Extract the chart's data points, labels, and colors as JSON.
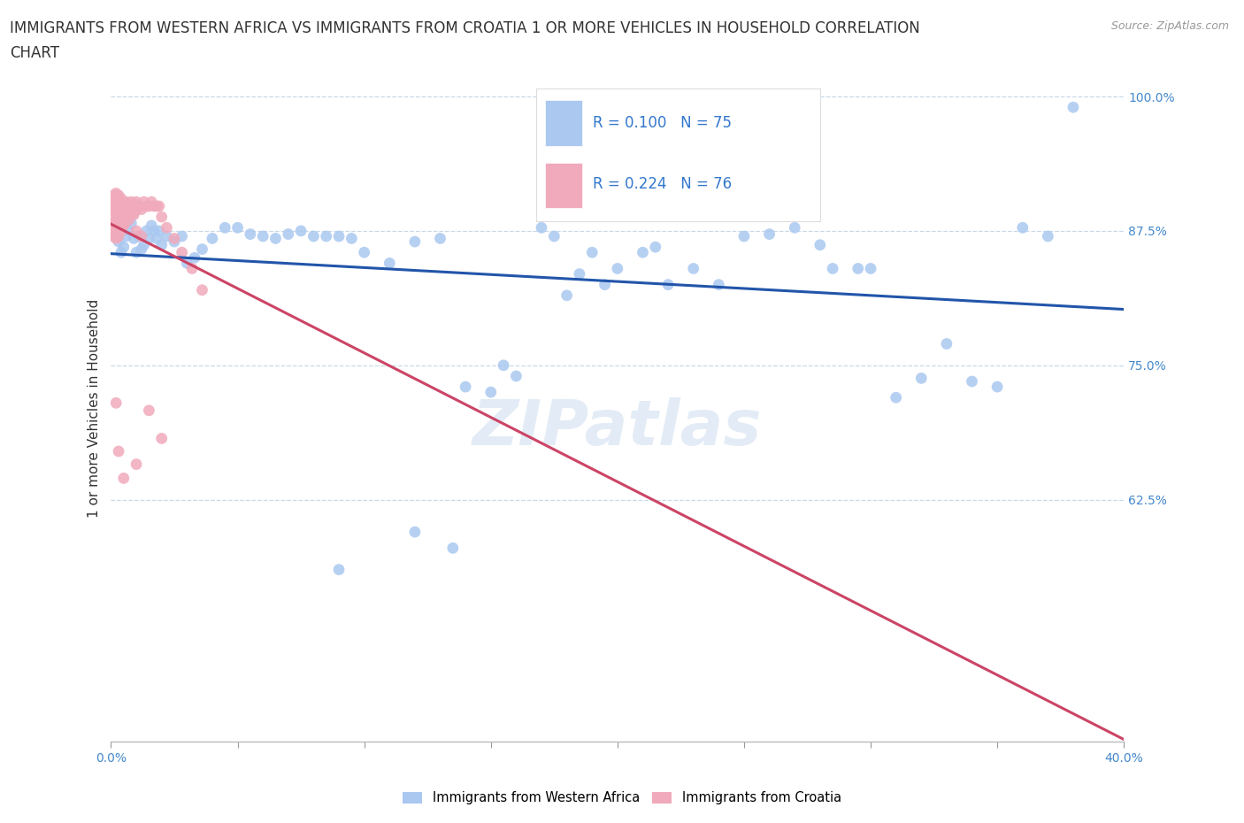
{
  "title_line1": "IMMIGRANTS FROM WESTERN AFRICA VS IMMIGRANTS FROM CROATIA 1 OR MORE VEHICLES IN HOUSEHOLD CORRELATION",
  "title_line2": "CHART",
  "source": "Source: ZipAtlas.com",
  "ylabel": "1 or more Vehicles in Household",
  "xlim": [
    0.0,
    0.4
  ],
  "ylim": [
    0.4,
    1.02
  ],
  "xtick_positions": [
    0.0,
    0.05,
    0.1,
    0.15,
    0.2,
    0.25,
    0.3,
    0.35,
    0.4
  ],
  "xticklabels": [
    "0.0%",
    "",
    "",
    "",
    "",
    "",
    "",
    "",
    "40.0%"
  ],
  "ytick_positions": [
    0.625,
    0.75,
    0.875,
    1.0
  ],
  "ytick_labels": [
    "62.5%",
    "75.0%",
    "87.5%",
    "100.0%"
  ],
  "blue_color": "#aac8f0",
  "pink_color": "#f0aabb",
  "blue_line_color": "#2255aa",
  "pink_line_color": "#cc4466",
  "r_blue": 0.1,
  "n_blue": 75,
  "r_pink": 0.224,
  "n_pink": 76,
  "legend_label_blue": "Immigrants from Western Africa",
  "legend_label_pink": "Immigrants from Croatia",
  "watermark": "ZIPatlas",
  "title_fontsize": 12,
  "source_fontsize": 9,
  "tick_fontsize": 10,
  "ylabel_fontsize": 11,
  "blue_x": [
    0.002,
    0.003,
    0.004,
    0.005,
    0.006,
    0.007,
    0.008,
    0.009,
    0.01,
    0.011,
    0.012,
    0.013,
    0.014,
    0.015,
    0.016,
    0.017,
    0.018,
    0.019,
    0.02,
    0.022,
    0.025,
    0.028,
    0.03,
    0.033,
    0.036,
    0.04,
    0.045,
    0.05,
    0.055,
    0.06,
    0.065,
    0.07,
    0.075,
    0.08,
    0.085,
    0.09,
    0.095,
    0.1,
    0.11,
    0.12,
    0.13,
    0.14,
    0.15,
    0.155,
    0.16,
    0.17,
    0.175,
    0.18,
    0.185,
    0.19,
    0.195,
    0.2,
    0.21,
    0.215,
    0.22,
    0.23,
    0.24,
    0.25,
    0.26,
    0.27,
    0.28,
    0.285,
    0.295,
    0.3,
    0.31,
    0.32,
    0.33,
    0.34,
    0.35,
    0.36,
    0.37,
    0.38,
    0.12,
    0.135,
    0.09
  ],
  "blue_y": [
    0.87,
    0.865,
    0.855,
    0.86,
    0.87,
    0.875,
    0.882,
    0.868,
    0.855,
    0.87,
    0.858,
    0.862,
    0.875,
    0.868,
    0.88,
    0.875,
    0.868,
    0.875,
    0.862,
    0.87,
    0.865,
    0.87,
    0.845,
    0.85,
    0.858,
    0.868,
    0.878,
    0.878,
    0.872,
    0.87,
    0.868,
    0.872,
    0.875,
    0.87,
    0.87,
    0.87,
    0.868,
    0.855,
    0.845,
    0.865,
    0.868,
    0.73,
    0.725,
    0.75,
    0.74,
    0.878,
    0.87,
    0.815,
    0.835,
    0.855,
    0.825,
    0.84,
    0.855,
    0.86,
    0.825,
    0.84,
    0.825,
    0.87,
    0.872,
    0.878,
    0.862,
    0.84,
    0.84,
    0.84,
    0.72,
    0.738,
    0.77,
    0.735,
    0.73,
    0.878,
    0.87,
    0.99,
    0.595,
    0.58,
    0.56
  ],
  "pink_x": [
    0.001,
    0.001,
    0.001,
    0.001,
    0.001,
    0.001,
    0.002,
    0.002,
    0.002,
    0.002,
    0.002,
    0.002,
    0.002,
    0.003,
    0.003,
    0.003,
    0.003,
    0.003,
    0.003,
    0.004,
    0.004,
    0.004,
    0.004,
    0.004,
    0.005,
    0.005,
    0.005,
    0.005,
    0.006,
    0.006,
    0.006,
    0.007,
    0.007,
    0.007,
    0.008,
    0.008,
    0.009,
    0.009,
    0.01,
    0.01,
    0.011,
    0.012,
    0.013,
    0.014,
    0.015,
    0.016,
    0.017,
    0.018,
    0.019,
    0.02,
    0.022,
    0.025,
    0.028,
    0.032,
    0.036,
    0.002,
    0.003,
    0.004,
    0.005,
    0.006,
    0.007,
    0.008,
    0.009,
    0.01,
    0.012,
    0.001,
    0.002,
    0.003,
    0.004,
    0.001,
    0.002,
    0.015,
    0.02,
    0.003,
    0.01,
    0.005
  ],
  "pink_y": [
    0.882,
    0.895,
    0.888,
    0.87,
    0.902,
    0.875,
    0.895,
    0.892,
    0.885,
    0.88,
    0.875,
    0.902,
    0.868,
    0.898,
    0.892,
    0.885,
    0.88,
    0.875,
    0.87,
    0.902,
    0.895,
    0.888,
    0.882,
    0.875,
    0.9,
    0.895,
    0.888,
    0.88,
    0.902,
    0.895,
    0.888,
    0.898,
    0.892,
    0.885,
    0.902,
    0.895,
    0.9,
    0.892,
    0.902,
    0.895,
    0.898,
    0.895,
    0.902,
    0.898,
    0.898,
    0.902,
    0.898,
    0.898,
    0.898,
    0.888,
    0.878,
    0.868,
    0.855,
    0.84,
    0.82,
    0.878,
    0.905,
    0.895,
    0.882,
    0.895,
    0.9,
    0.895,
    0.89,
    0.875,
    0.87,
    0.908,
    0.91,
    0.908,
    0.905,
    0.872,
    0.715,
    0.708,
    0.682,
    0.67,
    0.658,
    0.645
  ]
}
